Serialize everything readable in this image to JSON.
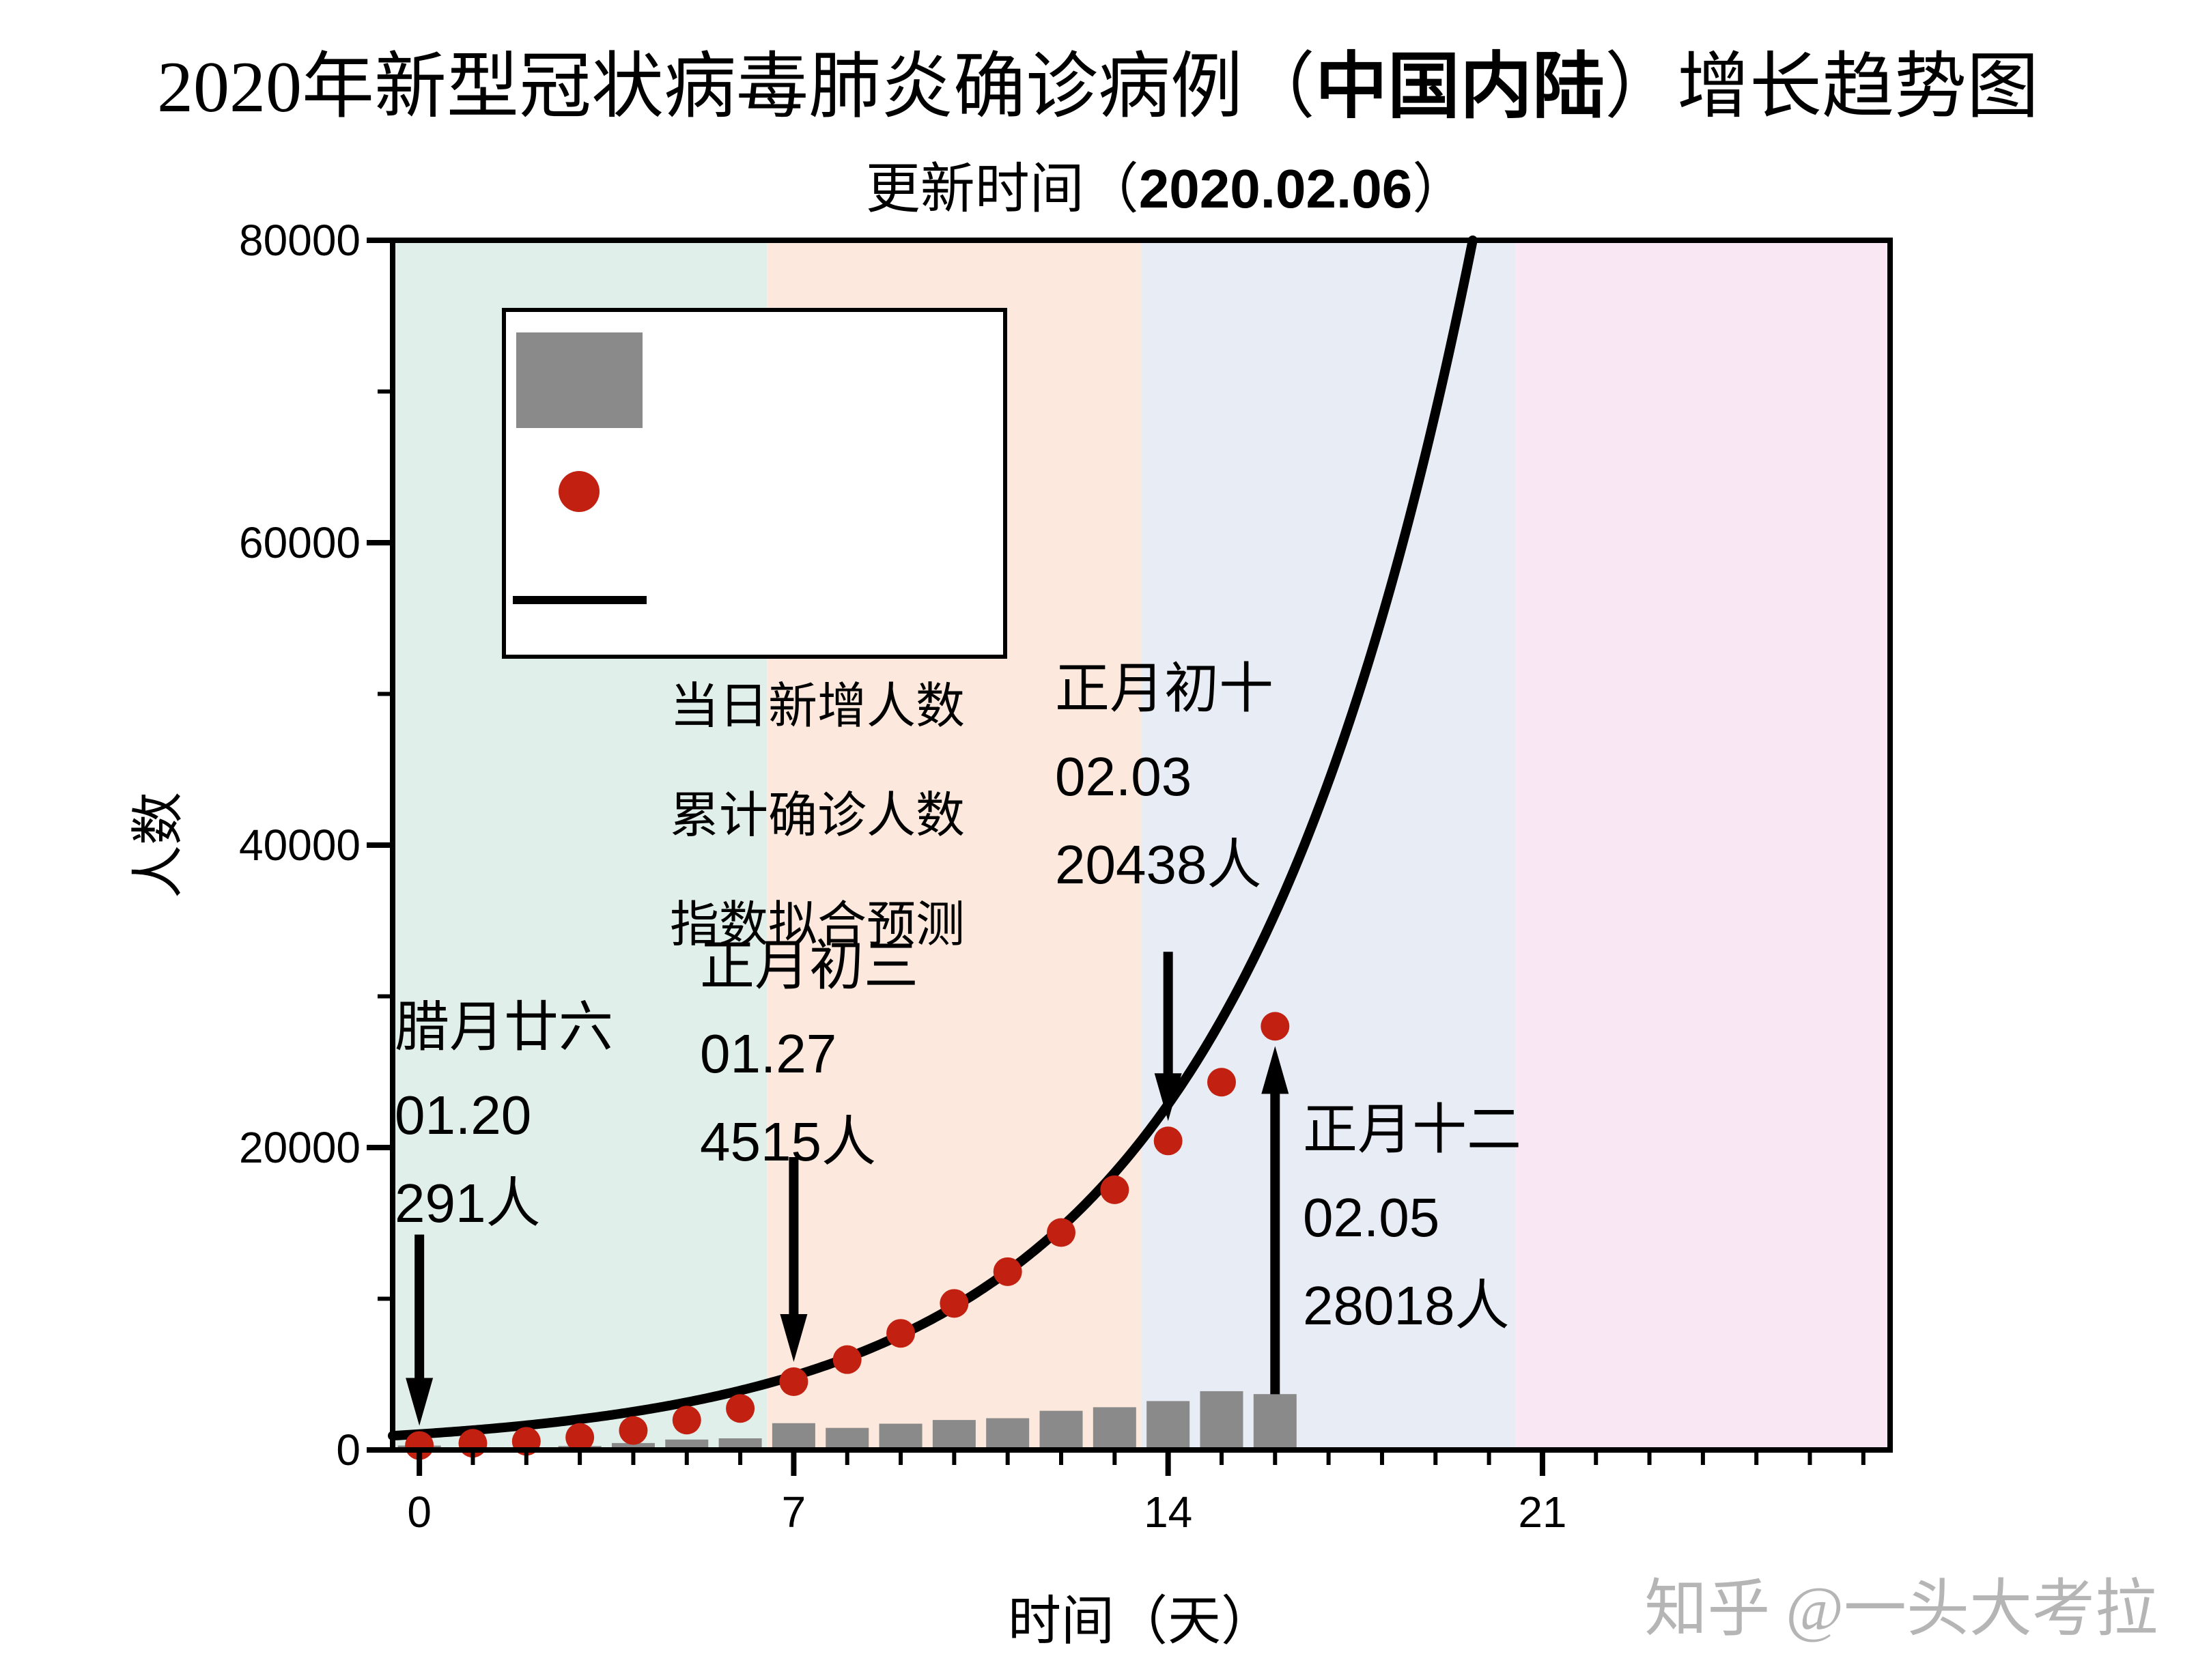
{
  "title": {
    "prefix": "2020年新型冠状病毒肺炎确诊病例（",
    "highlight": "中国内陆",
    "suffix": "）增长趋势图"
  },
  "subtitle": {
    "prefix": "更新时间（",
    "highlight": "2020.02.06",
    "suffix": "）"
  },
  "watermark": "知乎 @一头大考拉",
  "colors": {
    "bar": "#8a8a8a",
    "dot": "#c22112",
    "fit_line": "#000000",
    "axis": "#000000",
    "watermark": "#b5b5b5",
    "legend_border": "#000000"
  },
  "chart_data": {
    "type": "bar+scatter+line",
    "title": "2020年新型冠状病毒肺炎确诊病例（中国内陆）增长趋势图",
    "subtitle": "更新时间（2020.02.06）",
    "xlabel": "时间（天）",
    "ylabel": "人数",
    "days": [
      0,
      1,
      2,
      3,
      4,
      5,
      6,
      7,
      8,
      9,
      10,
      11,
      12,
      13,
      14,
      15,
      16
    ],
    "series": [
      {
        "name": "当日新增人数",
        "type": "bar",
        "values": [
          291,
          149,
          131,
          259,
          457,
          688,
          769,
          1771,
          1459,
          1737,
          1981,
          2099,
          2589,
          2825,
          3233,
          3886,
          3694
        ]
      },
      {
        "name": "累计确诊人数",
        "type": "scatter",
        "values": [
          291,
          440,
          571,
          830,
          1287,
          1975,
          2744,
          4515,
          5974,
          7711,
          9692,
          11791,
          14380,
          17205,
          20438,
          24324,
          28018
        ]
      },
      {
        "name": "指数拟合预测",
        "type": "line",
        "fit": {
          "a": 1050,
          "b": 0.22
        }
      }
    ],
    "axes": {
      "xticks": [
        0,
        7,
        14,
        21
      ],
      "yticks": [
        0,
        20000,
        40000,
        60000,
        80000
      ],
      "y_minor": [
        10000,
        30000,
        50000,
        70000
      ],
      "x_minor_step": 1,
      "xlim": [
        -0.5,
        27.5
      ],
      "ylim": [
        0,
        80000
      ],
      "grid": false
    },
    "legend": {
      "position": "upper-left",
      "items": [
        {
          "label": "当日新增人数",
          "swatch": "bar"
        },
        {
          "label": "累计确诊人数",
          "swatch": "dot"
        },
        {
          "label": "指数拟合预测",
          "swatch": "line"
        }
      ]
    },
    "regions": [
      {
        "from": -0.5,
        "to": 6.5,
        "color": "#e1efeb"
      },
      {
        "from": 6.5,
        "to": 13.5,
        "color": "#fce8dc"
      },
      {
        "from": 13.5,
        "to": 20.5,
        "color": "#e8edf5"
      },
      {
        "from": 20.5,
        "to": 27.5,
        "color": "#f9e7f4"
      }
    ],
    "annotations": [
      {
        "lines": [
          "腊月廿六",
          "01.20",
          "291人"
        ],
        "day": 0,
        "value": 291,
        "arrow": "down",
        "text_pos": [
          578,
          1442
        ],
        "arrow_len": 280
      },
      {
        "lines": [
          "正月初三",
          "01.27",
          "4515人"
        ],
        "day": 7,
        "value": 4515,
        "arrow": "down",
        "text_pos": [
          1025,
          1352
        ],
        "arrow_len": 300
      },
      {
        "lines": [
          "正月初十",
          "02.03",
          "20438人"
        ],
        "day": 14,
        "value": 20438,
        "arrow": "down",
        "text_pos": [
          1545,
          946
        ],
        "arrow_len": 248
      },
      {
        "lines": [
          "正月十二",
          "02.05",
          "28018人"
        ],
        "day": 16,
        "value": 28018,
        "arrow": "up",
        "text_pos": [
          1908,
          1592
        ],
        "arrow_len": 510
      }
    ]
  }
}
